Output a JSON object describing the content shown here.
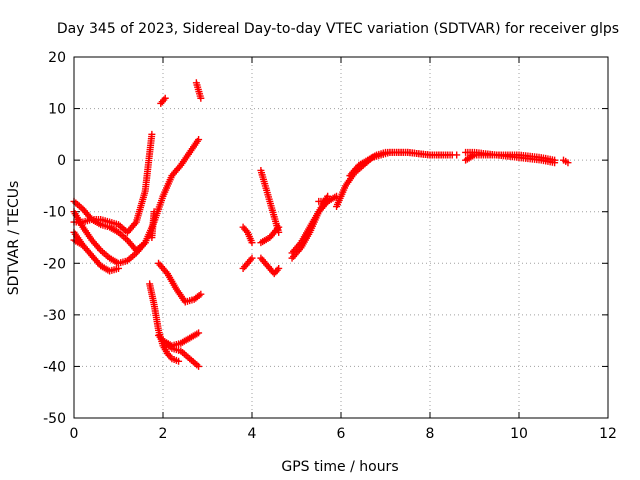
{
  "chart_data": {
    "type": "scatter",
    "title": "Day 345 of 2023, Sidereal Day-to-day VTEC variation (SDTVAR) for receiver glps",
    "xlabel": "GPS time / hours",
    "ylabel": "SDTVAR / TECUs",
    "xlim": [
      0,
      12
    ],
    "ylim": [
      -50,
      20
    ],
    "x_ticks": [
      0,
      2,
      4,
      6,
      8,
      10,
      12
    ],
    "y_ticks": [
      -50,
      -40,
      -30,
      -20,
      -10,
      0,
      10,
      20
    ],
    "grid": true,
    "marker": "+",
    "color": "#ff0000",
    "series": [
      {
        "x": [
          0.0,
          0.2,
          0.4,
          0.6,
          0.8,
          1.0,
          1.2,
          1.4,
          1.6,
          1.8,
          2.0,
          2.2,
          2.4,
          2.6,
          2.8
        ],
        "y": [
          -8,
          -9.5,
          -11.5,
          -12.5,
          -13,
          -14,
          -15.5,
          -17.5,
          -16,
          -12,
          -7,
          -3,
          -1,
          1.5,
          4
        ]
      },
      {
        "x": [
          0.0,
          0.2,
          0.4,
          0.6,
          0.8,
          1.0,
          1.2,
          1.4,
          1.6
        ],
        "y": [
          -10,
          -13,
          -15.5,
          -17.5,
          -19,
          -20,
          -19.5,
          -18,
          -16
        ]
      },
      {
        "x": [
          0.0,
          0.2,
          0.4,
          0.6,
          0.8,
          1.0
        ],
        "y": [
          -14,
          -16.5,
          -18.5,
          -20.5,
          -21.5,
          -21
        ]
      },
      {
        "x": [
          0.0,
          0.2
        ],
        "y": [
          -15.5,
          -16.5
        ]
      },
      {
        "x": [
          0.0,
          0.2,
          0.4,
          0.6,
          0.8,
          1.0,
          1.2,
          1.4,
          1.6,
          1.75
        ],
        "y": [
          -12,
          -12,
          -11.5,
          -11.5,
          -12,
          -12.5,
          -14,
          -12,
          -6,
          5
        ]
      },
      {
        "x": [
          1.75,
          1.8
        ],
        "y": [
          -15,
          -10
        ]
      },
      {
        "x": [
          1.95,
          2.05
        ],
        "y": [
          11,
          12
        ]
      },
      {
        "x": [
          1.7,
          1.8,
          1.9,
          2.0,
          2.1,
          2.2,
          2.35
        ],
        "y": [
          -24,
          -28,
          -33,
          -36,
          -37.5,
          -38.5,
          -39
        ]
      },
      {
        "x": [
          1.9,
          2.0,
          2.2,
          2.4,
          2.6,
          2.8
        ],
        "y": [
          -34,
          -35,
          -36,
          -35.5,
          -34.5,
          -33.5
        ]
      },
      {
        "x": [
          2.0,
          2.2,
          2.4,
          2.6,
          2.8
        ],
        "y": [
          -35,
          -36.5,
          -37,
          -38.5,
          -40
        ]
      },
      {
        "x": [
          1.9,
          2.1,
          2.3,
          2.5,
          2.7,
          2.85
        ],
        "y": [
          -20,
          -22,
          -25,
          -27.5,
          -27,
          -26
        ]
      },
      {
        "x": [
          2.75,
          2.85
        ],
        "y": [
          15,
          12
        ]
      },
      {
        "x": [
          3.8,
          3.9,
          4.0
        ],
        "y": [
          -13,
          -14,
          -16
        ]
      },
      {
        "x": [
          3.8,
          3.9,
          4.0
        ],
        "y": [
          -21,
          -20,
          -19
        ]
      },
      {
        "x": [
          4.2,
          4.3,
          4.4,
          4.5,
          4.6
        ],
        "y": [
          -2,
          -5,
          -8,
          -11,
          -14
        ]
      },
      {
        "x": [
          4.2,
          4.4,
          4.6
        ],
        "y": [
          -16,
          -15,
          -13
        ]
      },
      {
        "x": [
          4.2,
          4.3,
          4.4,
          4.5,
          4.6
        ],
        "y": [
          -19,
          -20,
          -21,
          -22,
          -21
        ]
      },
      {
        "x": [
          4.9,
          5.1,
          5.3,
          5.5,
          5.7
        ],
        "y": [
          -19,
          -17,
          -14,
          -10,
          -8
        ]
      },
      {
        "x": [
          4.9,
          5.1,
          5.3,
          5.5,
          5.7
        ],
        "y": [
          -18,
          -16,
          -13,
          -10,
          -7
        ]
      },
      {
        "x": [
          5.5,
          5.7,
          5.9
        ],
        "y": [
          -8,
          -8,
          -7
        ]
      },
      {
        "x": [
          5.9,
          6.1,
          6.3,
          6.5,
          6.7,
          6.9,
          7.1,
          7.5,
          8.0,
          8.5
        ],
        "y": [
          -9,
          -5,
          -2.5,
          -1,
          0.5,
          1,
          1.5,
          1.5,
          1,
          1
        ]
      },
      {
        "x": [
          6.2,
          6.4,
          6.6,
          6.8,
          7.0,
          7.5,
          8.0,
          8.4
        ],
        "y": [
          -3,
          -1,
          0,
          1,
          1.5,
          1.5,
          1,
          1
        ]
      },
      {
        "x": [
          8.6
        ],
        "y": [
          1
        ]
      },
      {
        "x": [
          8.8,
          9.0,
          9.5,
          10.0,
          10.5,
          10.8
        ],
        "y": [
          0,
          1,
          1,
          0.5,
          0,
          -0.5
        ]
      },
      {
        "x": [
          8.8,
          9.0,
          9.5,
          10.0,
          10.5,
          10.8
        ],
        "y": [
          1.5,
          1.5,
          1,
          1,
          0.5,
          0
        ]
      },
      {
        "x": [
          11.0,
          11.1
        ],
        "y": [
          0,
          -0.5
        ]
      }
    ]
  }
}
